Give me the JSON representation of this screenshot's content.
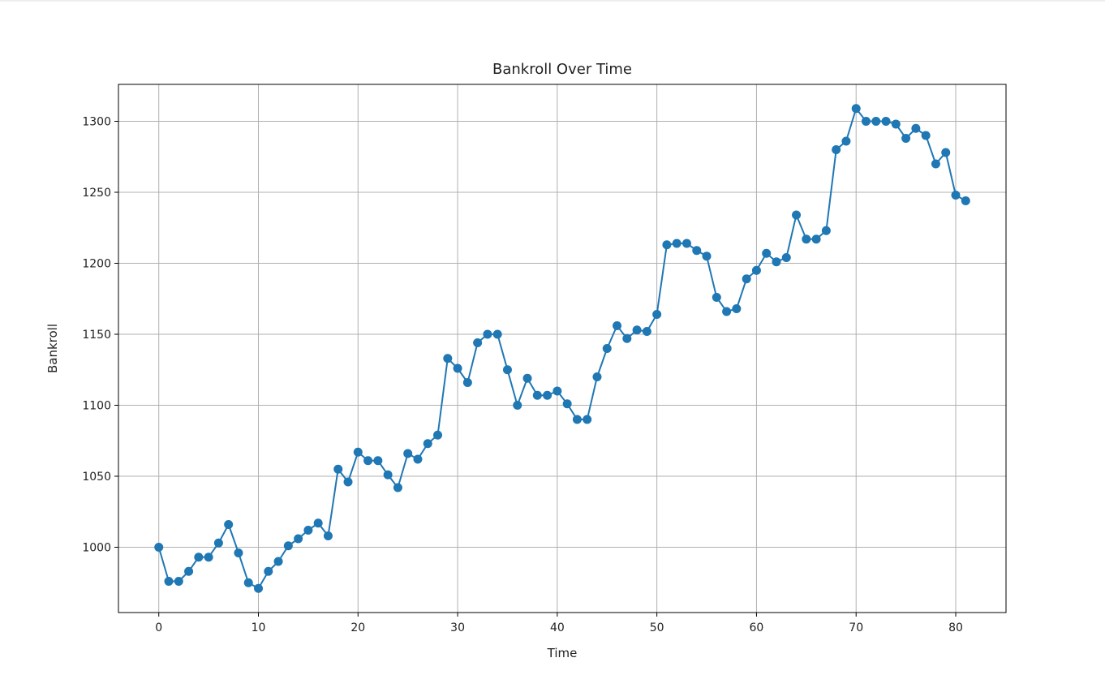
{
  "chart_data": {
    "type": "line",
    "title": "Bankroll Over Time",
    "xlabel": "Time",
    "ylabel": "Bankroll",
    "xlim": [
      -4.05,
      85.05
    ],
    "ylim": [
      954,
      1326
    ],
    "xticks": [
      0,
      10,
      20,
      30,
      40,
      50,
      60,
      70,
      80
    ],
    "yticks": [
      1000,
      1050,
      1100,
      1150,
      1200,
      1250,
      1300
    ],
    "grid": true,
    "legend": "none",
    "marker": "circle",
    "color": "#1f77b4",
    "series": [
      {
        "values": [
          1000,
          976,
          976,
          983,
          993,
          993,
          1003,
          1016,
          996,
          975,
          971,
          983,
          990,
          1001,
          1006,
          1012,
          1017,
          1008,
          1055,
          1046,
          1067,
          1061,
          1061,
          1051,
          1042,
          1066,
          1062,
          1073,
          1079,
          1133,
          1126,
          1116,
          1144,
          1150,
          1150,
          1125,
          1100,
          1119,
          1107,
          1107,
          1110,
          1101,
          1090,
          1090,
          1120,
          1140,
          1156,
          1147,
          1153,
          1152,
          1164,
          1213,
          1214,
          1214,
          1209,
          1205,
          1176,
          1166,
          1168,
          1189,
          1195,
          1207,
          1201,
          1204,
          1234,
          1217,
          1217,
          1223,
          1280,
          1286,
          1309,
          1300,
          1300,
          1300,
          1298,
          1288,
          1295,
          1290,
          1270,
          1278,
          1248,
          1244
        ]
      }
    ]
  }
}
